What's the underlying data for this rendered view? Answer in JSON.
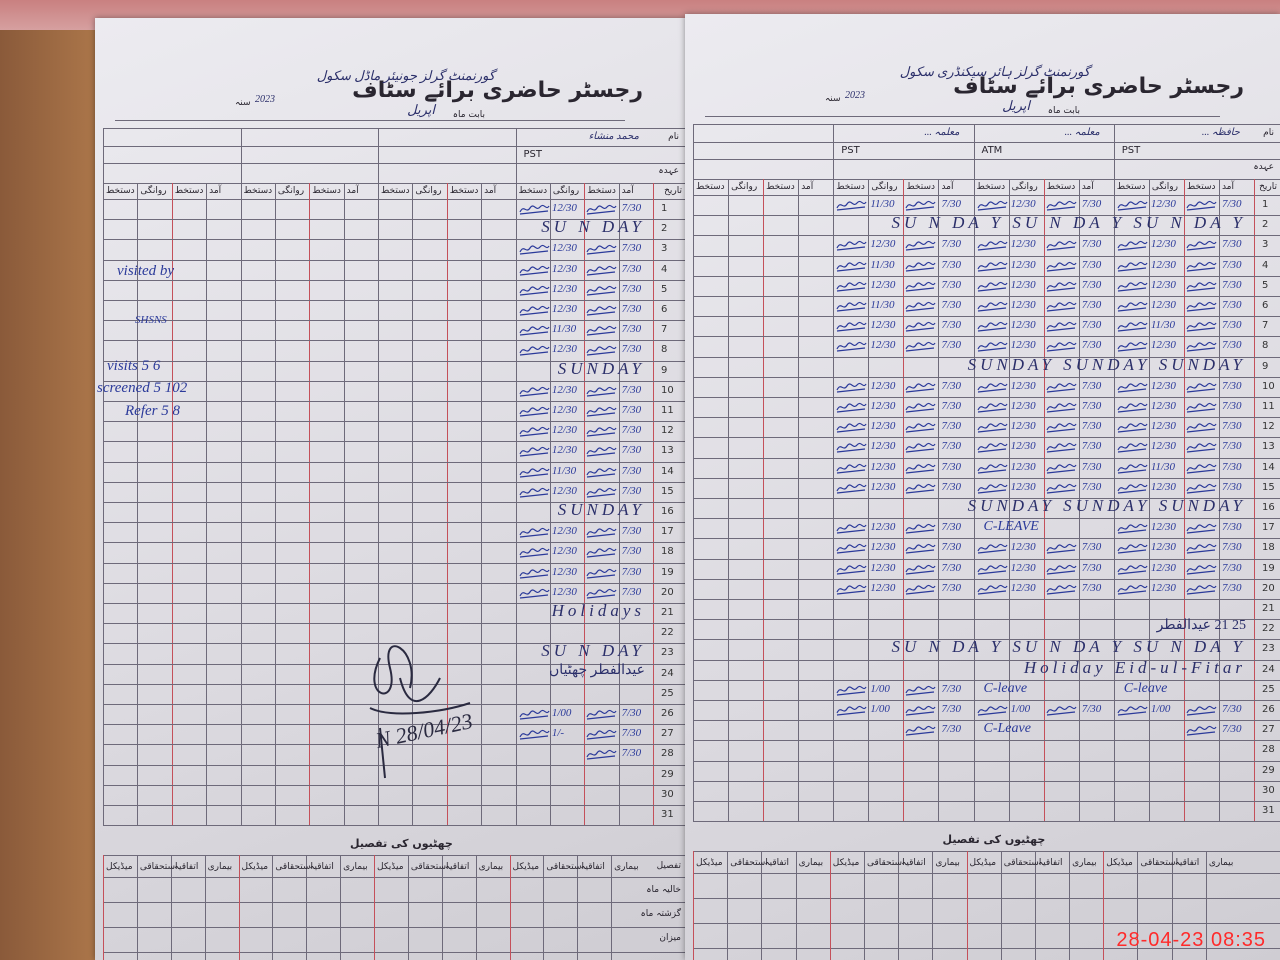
{
  "register": {
    "title": "رجسٹر حاضری برائے سٹاف",
    "month_label": "بابت ماہ",
    "month": "اپریل",
    "year_label": "سنہ",
    "year": "2023",
    "name_label": "نام",
    "designation_label": "عہدہ",
    "date_label": "تاریخ",
    "col_labels": [
      "آمد",
      "دستخط",
      "روانگی",
      "دستخط"
    ],
    "leave_title": "چھٹیوں کی تفصیل",
    "leave_cols": [
      "بیماری",
      "اتفاقیہ",
      "استحقاقی",
      "میڈیکل"
    ],
    "leave_rows": [
      "تفصیل",
      "خالیہ ماہ",
      "گزشتہ ماہ",
      "میزان"
    ]
  },
  "left_page": {
    "school": "گورنمنٹ گرلز جونیئر ماڈل سکول",
    "staff": [
      {
        "name": "محمد منشاء",
        "designation": "PST"
      }
    ],
    "rows": [
      {
        "in": "7/30",
        "out": "12/30"
      },
      {
        "note": "SU N DAY"
      },
      {
        "in": "7/30",
        "out": "12/30"
      },
      {
        "in": "7/30",
        "out": "12/30"
      },
      {
        "in": "7/30",
        "out": "12/30"
      },
      {
        "in": "7/30",
        "out": "12/30"
      },
      {
        "in": "7/30",
        "out": "11/30"
      },
      {
        "in": "7/30",
        "out": "12/30"
      },
      {
        "note": "SUNDAY"
      },
      {
        "in": "7/30",
        "out": "12/30"
      },
      {
        "in": "7/30",
        "out": "12/30"
      },
      {
        "in": "7/30",
        "out": "12/30"
      },
      {
        "in": "7/30",
        "out": "12/30"
      },
      {
        "in": "7/30",
        "out": "11/30"
      },
      {
        "in": "7/30",
        "out": "12/30"
      },
      {
        "note": "SUNDAY"
      },
      {
        "in": "7/30",
        "out": "12/30"
      },
      {
        "in": "7/30",
        "out": "12/30"
      },
      {
        "in": "7/30",
        "out": "12/30"
      },
      {
        "in": "7/30",
        "out": "12/30"
      },
      {
        "note": "Holidays"
      },
      {},
      {
        "note": "SU N DAY"
      },
      {
        "note": "عیدالفطر چھٹیاں"
      },
      {},
      {
        "in": "7/30",
        "out": "1/00"
      },
      {
        "in": "7/30",
        "out": "1/-"
      },
      {
        "in": "7/30"
      },
      {},
      {},
      {}
    ],
    "side_notes": [
      "visited by",
      "SHSNS",
      "visits 5 6",
      "screened 5 102",
      "Refer 5 8"
    ],
    "inspector_signature": "N 28/04/23"
  },
  "right_page": {
    "school": "گورنمنٹ گرلز ہائر سیکنڈری سکول",
    "staff": [
      {
        "name": "حافظہ ...",
        "designation": "PST"
      },
      {
        "name": "معلمہ ...",
        "designation": "ATM"
      },
      {
        "name": "معلمہ ...",
        "designation": "PST"
      }
    ],
    "rows": [
      {
        "g": [
          [
            "7/30",
            "12/30"
          ],
          [
            "7/30",
            "12/30"
          ],
          [
            "7/30",
            "11/30"
          ]
        ]
      },
      {
        "note": "SU N DA Y   SU N DA Y   SU N DA Y"
      },
      {
        "g": [
          [
            "7/30",
            "12/30"
          ],
          [
            "7/30",
            "12/30"
          ],
          [
            "7/30",
            "12/30"
          ]
        ]
      },
      {
        "g": [
          [
            "7/30",
            "12/30"
          ],
          [
            "7/30",
            "12/30"
          ],
          [
            "7/30",
            "11/30"
          ]
        ]
      },
      {
        "g": [
          [
            "7/30",
            "12/30"
          ],
          [
            "7/30",
            "12/30"
          ],
          [
            "7/30",
            "12/30"
          ]
        ]
      },
      {
        "g": [
          [
            "7/30",
            "12/30"
          ],
          [
            "7/30",
            "12/30"
          ],
          [
            "7/30",
            "11/30"
          ]
        ]
      },
      {
        "g": [
          [
            "7/30",
            "11/30"
          ],
          [
            "7/30",
            "12/30"
          ],
          [
            "7/30",
            "12/30"
          ]
        ]
      },
      {
        "g": [
          [
            "7/30",
            "12/30"
          ],
          [
            "7/30",
            "12/30"
          ],
          [
            "7/30",
            "12/30"
          ]
        ]
      },
      {
        "note": "SUNDAY   SUNDAY   SUNDAY"
      },
      {
        "g": [
          [
            "7/30",
            "12/30"
          ],
          [
            "7/30",
            "12/30"
          ],
          [
            "7/30",
            "12/30"
          ]
        ]
      },
      {
        "g": [
          [
            "7/30",
            "12/30"
          ],
          [
            "7/30",
            "12/30"
          ],
          [
            "7/30",
            "12/30"
          ]
        ]
      },
      {
        "g": [
          [
            "7/30",
            "12/30"
          ],
          [
            "7/30",
            "12/30"
          ],
          [
            "7/30",
            "12/30"
          ]
        ]
      },
      {
        "g": [
          [
            "7/30",
            "12/30"
          ],
          [
            "7/30",
            "12/30"
          ],
          [
            "7/30",
            "12/30"
          ]
        ]
      },
      {
        "g": [
          [
            "7/30",
            "11/30"
          ],
          [
            "7/30",
            "12/30"
          ],
          [
            "7/30",
            "12/30"
          ]
        ]
      },
      {
        "g": [
          [
            "7/30",
            "12/30"
          ],
          [
            "7/30",
            "12/30"
          ],
          [
            "7/30",
            "12/30"
          ]
        ]
      },
      {
        "note": "SUNDAY   SUNDAY   SUNDAY"
      },
      {
        "g": [
          [
            "7/30",
            "12/30"
          ],
          [
            "C-LEAVE"
          ],
          [
            "7/30",
            "12/30"
          ]
        ]
      },
      {
        "g": [
          [
            "7/30",
            "12/30"
          ],
          [
            "7/30",
            "12/30"
          ],
          [
            "7/30",
            "12/30"
          ]
        ]
      },
      {
        "g": [
          [
            "7/30",
            "12/30"
          ],
          [
            "7/30",
            "12/30"
          ],
          [
            "7/30",
            "12/30"
          ]
        ]
      },
      {
        "g": [
          [
            "7/30",
            "12/30"
          ],
          [
            "7/30",
            "12/30"
          ],
          [
            "7/30",
            "12/30"
          ]
        ]
      },
      {},
      {
        "note": "25  21  عیدالفطر"
      },
      {
        "note": "SU N DA Y   SU N DA Y   SU N DA Y"
      },
      {
        "note": "Holiday Eid-ul-Fitar"
      },
      {
        "g": [
          [
            "C-leave"
          ],
          [
            "C-leave"
          ],
          [
            "7/30",
            "1/00"
          ]
        ]
      },
      {
        "g": [
          [
            "7/30",
            "1/00"
          ],
          [
            "7/30",
            "1/00"
          ],
          [
            "7/30",
            "1/00"
          ]
        ]
      },
      {
        "g": [
          [
            "7/30"
          ],
          [
            "C-Leave"
          ],
          [
            "7/30"
          ]
        ]
      },
      {},
      {},
      {},
      {}
    ]
  },
  "photo": {
    "timestamp": "28-04-23  08:35"
  },
  "colors": {
    "ink": "#2b3a9a",
    "ruling": "#6e6a7a",
    "red_ruling": "#c4505a",
    "stamp": "#ff2a2a"
  }
}
